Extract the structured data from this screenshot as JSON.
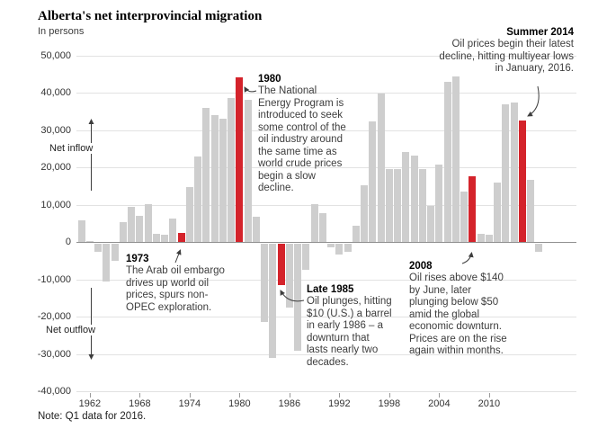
{
  "header": {
    "title": "Alberta's net interprovincial migration",
    "subtitle": "In persons"
  },
  "note": "Note: Q1 data for 2016.",
  "colors": {
    "bar": "#cecece",
    "highlight": "#d4232b",
    "grid": "#e2e2e2",
    "zero_line": "#8f8f8f",
    "axis_text": "#333333",
    "annotation_text": "#3d3d3d"
  },
  "axis": {
    "inflow_label": "Net inflow",
    "outflow_label": "Net outflow",
    "y_ticks": [
      {
        "label": "50,000",
        "value": 50000
      },
      {
        "label": "40,000",
        "value": 40000
      },
      {
        "label": "30,000",
        "value": 30000
      },
      {
        "label": "20,000",
        "value": 20000
      },
      {
        "label": "10,000",
        "value": 10000
      },
      {
        "label": "0",
        "value": 0
      },
      {
        "label": "-10,000",
        "value": -10000
      },
      {
        "label": "-20,000",
        "value": -20000
      },
      {
        "label": "-30,000",
        "value": -30000
      },
      {
        "label": "-40,000",
        "value": -40000
      }
    ],
    "x_ticks": [
      1962,
      1968,
      1974,
      1980,
      1986,
      1992,
      1998,
      2004,
      2010
    ]
  },
  "chart_data": {
    "type": "bar",
    "title": "Alberta's net interprovincial migration",
    "ylabel": "In persons",
    "ylim": [
      -40000,
      50000
    ],
    "grid": true,
    "x": [
      1961,
      1962,
      1963,
      1964,
      1965,
      1966,
      1967,
      1968,
      1969,
      1970,
      1971,
      1972,
      1973,
      1974,
      1975,
      1976,
      1977,
      1978,
      1979,
      1980,
      1981,
      1982,
      1983,
      1984,
      1985,
      1986,
      1987,
      1988,
      1989,
      1990,
      1991,
      1992,
      1993,
      1994,
      1995,
      1996,
      1997,
      1998,
      1999,
      2000,
      2001,
      2002,
      2003,
      2004,
      2005,
      2006,
      2007,
      2008,
      2009,
      2010,
      2011,
      2012,
      2013,
      2014,
      2015,
      2016
    ],
    "values": [
      5800,
      300,
      -2400,
      -10200,
      -4800,
      5400,
      9300,
      7100,
      10200,
      2100,
      1900,
      6300,
      2500,
      14600,
      23000,
      36000,
      34000,
      33000,
      38600,
      44000,
      38000,
      6800,
      -21200,
      -30800,
      -11200,
      -17200,
      -28900,
      -7000,
      10200,
      7800,
      -1200,
      -3000,
      -2400,
      4400,
      15200,
      32400,
      39800,
      19600,
      19400,
      24200,
      23200,
      19600,
      9600,
      20800,
      42800,
      44400,
      13500,
      17500,
      2200,
      2000,
      15800,
      36900,
      37400,
      32500,
      16600,
      -2200
    ],
    "highlighted_years": [
      1973,
      1980,
      1985,
      2008,
      2014
    ],
    "footnote": "Q1 data for 2016"
  },
  "annotations": [
    {
      "head": "1973",
      "body": "The Arab oil embargo\ndrives up world oil\nprices, spurs non-\nOPEC exploration."
    },
    {
      "head": "1980",
      "body": "The National\nEnergy Program is\nintroduced to seek\nsome control of the\noil industry around\nthe same time as\nworld crude prices\nbegin a slow\ndecline."
    },
    {
      "head": "Late 1985",
      "body": "Oil plunges, hitting\n$10 (U.S.) a barrel\nin early 1986 – a\ndownturn that\nlasts nearly two\ndecades."
    },
    {
      "head": "2008",
      "body": "Oil rises above $140\nby June, later\nplunging below $50\namid the global\neconomic downturn.\nPrices are on the rise\nagain within months."
    },
    {
      "head": "Summer 2014",
      "body": "Oil prices begin their latest\ndecline, hitting multiyear lows\nin January, 2016."
    }
  ]
}
